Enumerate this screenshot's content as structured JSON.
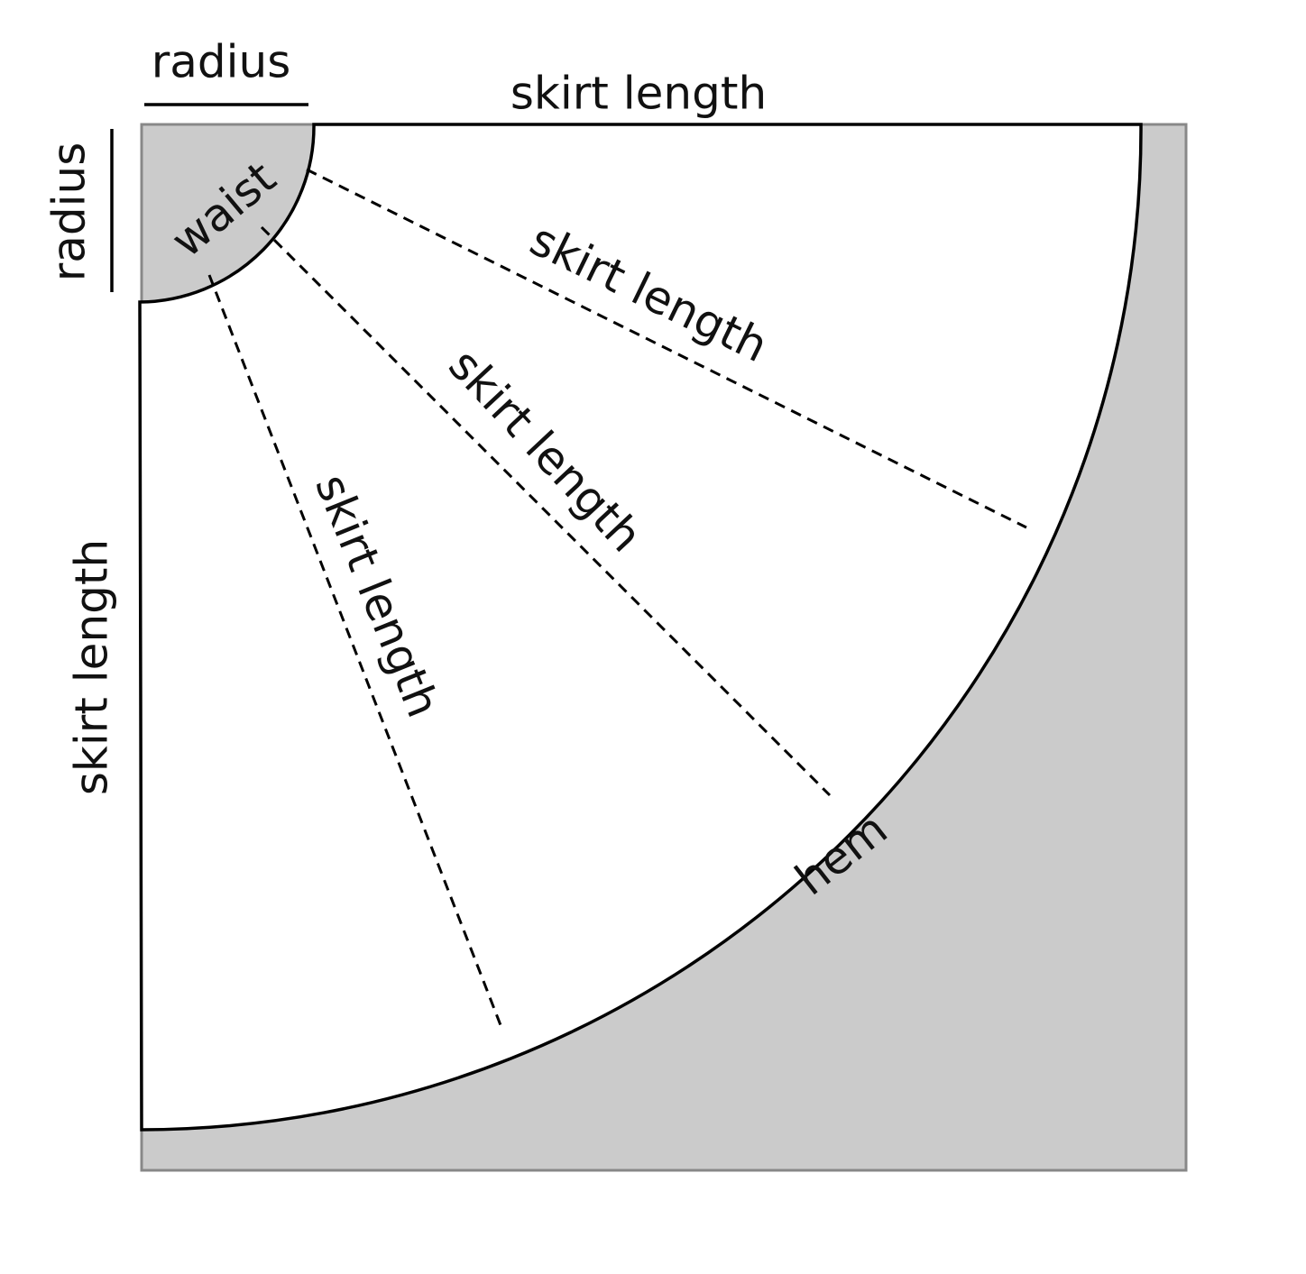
{
  "labels": {
    "top_radius": "radius",
    "top_skirt_length": "skirt length",
    "left_radius": "radius",
    "waist": "waist",
    "dashed_skirt_length_1": "skirt length",
    "dashed_skirt_length_2": "skirt length",
    "dashed_skirt_length_3": "skirt length",
    "left_skirt_length": "skirt length",
    "hem": "hem"
  }
}
